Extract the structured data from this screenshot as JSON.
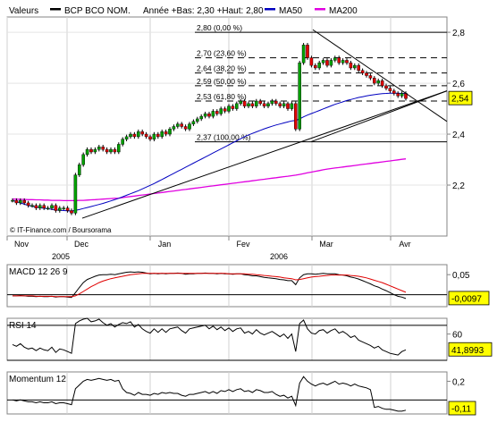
{
  "header": {
    "valeurs_label": "Valeurs",
    "instrument": "BCP BCO NOM.",
    "stats": "Année +Bas: 2,30 +Haut: 2,80",
    "ma50_label": "MA50",
    "ma200_label": "MA200"
  },
  "colors": {
    "background": "#ffffff",
    "frame": "#848484",
    "bull_candle": "#00a000",
    "bear_candle": "#e00000",
    "ma50": "#0000c0",
    "ma200": "#e000e0",
    "macd_line": "#000000",
    "macd_signal": "#e00000",
    "badge": "#ffff00"
  },
  "copyright": "© IT-Finance.com / Boursorama",
  "chart_data": [
    {
      "type": "candlestick",
      "months": [
        "Nov",
        "Dec",
        "Jan",
        "Fev",
        "Mar",
        "Avr"
      ],
      "years": [
        "2005",
        "2006"
      ],
      "y_ticks": [
        "2,8",
        "2,6",
        "2,4",
        "2,2"
      ],
      "ylim": [
        2.0,
        2.86
      ],
      "last_value": "2,54",
      "fibonacci": [
        {
          "level": 2.8,
          "label": "2,80 (0,00 %)"
        },
        {
          "level": 2.7,
          "label": "2,70 (23,60 %)"
        },
        {
          "level": 2.64,
          "label": "2,64 (38,20 %)"
        },
        {
          "level": 2.59,
          "label": "2,59 (50,00 %)"
        },
        {
          "level": 2.53,
          "label": "2,53 (61,80 %)"
        },
        {
          "level": 2.37,
          "label": "2,37 (100,00 %)"
        }
      ],
      "closes": [
        2.14,
        2.13,
        2.14,
        2.13,
        2.12,
        2.12,
        2.11,
        2.12,
        2.11,
        2.11,
        2.12,
        2.1,
        2.11,
        2.11,
        2.1,
        2.09,
        2.24,
        2.28,
        2.32,
        2.34,
        2.33,
        2.34,
        2.35,
        2.34,
        2.33,
        2.34,
        2.33,
        2.36,
        2.38,
        2.39,
        2.4,
        2.39,
        2.41,
        2.4,
        2.39,
        2.38,
        2.4,
        2.39,
        2.41,
        2.4,
        2.42,
        2.43,
        2.44,
        2.43,
        2.42,
        2.44,
        2.45,
        2.46,
        2.47,
        2.48,
        2.47,
        2.49,
        2.48,
        2.5,
        2.49,
        2.51,
        2.5,
        2.52,
        2.53,
        2.51,
        2.52,
        2.51,
        2.53,
        2.52,
        2.51,
        2.52,
        2.53,
        2.52,
        2.51,
        2.52,
        2.5,
        2.52,
        2.42,
        2.68,
        2.75,
        2.7,
        2.67,
        2.66,
        2.68,
        2.69,
        2.67,
        2.69,
        2.7,
        2.68,
        2.69,
        2.68,
        2.66,
        2.67,
        2.65,
        2.64,
        2.63,
        2.62,
        2.6,
        2.61,
        2.59,
        2.58,
        2.57,
        2.56,
        2.55,
        2.56,
        2.54
      ],
      "ma50": [
        2.14,
        2.135,
        2.13,
        2.125,
        2.12,
        2.117,
        2.114,
        2.111,
        2.109,
        2.107,
        2.105,
        2.103,
        2.101,
        2.1,
        2.099,
        2.098,
        2.101,
        2.104,
        2.108,
        2.112,
        2.116,
        2.12,
        2.124,
        2.128,
        2.133,
        2.138,
        2.143,
        2.148,
        2.154,
        2.16,
        2.166,
        2.172,
        2.178,
        2.185,
        2.192,
        2.199,
        2.206,
        2.214,
        2.222,
        2.23,
        2.238,
        2.246,
        2.254,
        2.262,
        2.27,
        2.278,
        2.286,
        2.294,
        2.302,
        2.31,
        2.318,
        2.326,
        2.334,
        2.342,
        2.35,
        2.358,
        2.366,
        2.374,
        2.382,
        2.39,
        2.397,
        2.403,
        2.409,
        2.415,
        2.421,
        2.426,
        2.431,
        2.436,
        2.44,
        2.444,
        2.448,
        2.452,
        2.454,
        2.46,
        2.468,
        2.475,
        2.481,
        2.487,
        2.493,
        2.499,
        2.505,
        2.511,
        2.517,
        2.522,
        2.527,
        2.532,
        2.536,
        2.54,
        2.544,
        2.547,
        2.55,
        2.553,
        2.555,
        2.557,
        2.559,
        2.56,
        2.561,
        2.561,
        2.561,
        2.56,
        2.56
      ],
      "ma200": [
        2.145,
        2.145,
        2.144,
        2.144,
        2.143,
        2.143,
        2.142,
        2.142,
        2.141,
        2.141,
        2.14,
        2.14,
        2.14,
        2.139,
        2.139,
        2.139,
        2.139,
        2.14,
        2.14,
        2.141,
        2.142,
        2.143,
        2.144,
        2.145,
        2.146,
        2.147,
        2.148,
        2.149,
        2.151,
        2.153,
        2.155,
        2.157,
        2.159,
        2.161,
        2.163,
        2.165,
        2.167,
        2.169,
        2.171,
        2.173,
        2.175,
        2.177,
        2.179,
        2.181,
        2.183,
        2.185,
        2.187,
        2.189,
        2.191,
        2.193,
        2.195,
        2.197,
        2.199,
        2.201,
        2.203,
        2.205,
        2.207,
        2.209,
        2.211,
        2.213,
        2.215,
        2.217,
        2.219,
        2.221,
        2.223,
        2.225,
        2.227,
        2.229,
        2.231,
        2.233,
        2.235,
        2.237,
        2.239,
        2.242,
        2.245,
        2.248,
        2.251,
        2.254,
        2.257,
        2.26,
        2.263,
        2.265,
        2.267,
        2.269,
        2.271,
        2.273,
        2.275,
        2.277,
        2.279,
        2.281,
        2.283,
        2.285,
        2.287,
        2.289,
        2.291,
        2.293,
        2.295,
        2.297,
        2.299,
        2.301,
        2.303
      ]
    },
    {
      "type": "line",
      "label": "MACD 12 26 9",
      "y_ticks": [
        "0,05"
      ],
      "ylim": [
        -0.03,
        0.075
      ],
      "zero_line": 0,
      "last_value": "-0,0097",
      "macd": [
        -0.003,
        -0.003,
        -0.002,
        -0.003,
        -0.004,
        -0.004,
        -0.005,
        -0.004,
        -0.005,
        -0.005,
        -0.004,
        -0.006,
        -0.005,
        -0.005,
        -0.006,
        -0.007,
        0.005,
        0.018,
        0.03,
        0.038,
        0.042,
        0.046,
        0.049,
        0.05,
        0.05,
        0.051,
        0.05,
        0.052,
        0.054,
        0.056,
        0.057,
        0.056,
        0.057,
        0.056,
        0.054,
        0.052,
        0.053,
        0.052,
        0.053,
        0.052,
        0.053,
        0.053,
        0.054,
        0.053,
        0.051,
        0.052,
        0.052,
        0.053,
        0.053,
        0.054,
        0.053,
        0.053,
        0.052,
        0.053,
        0.052,
        0.052,
        0.051,
        0.052,
        0.052,
        0.05,
        0.049,
        0.047,
        0.047,
        0.045,
        0.043,
        0.042,
        0.041,
        0.04,
        0.038,
        0.037,
        0.035,
        0.035,
        0.025,
        0.042,
        0.05,
        0.052,
        0.052,
        0.051,
        0.052,
        0.053,
        0.052,
        0.052,
        0.052,
        0.05,
        0.049,
        0.047,
        0.044,
        0.042,
        0.039,
        0.035,
        0.031,
        0.027,
        0.022,
        0.019,
        0.014,
        0.01,
        0.005,
        0.0,
        -0.004,
        -0.006,
        -0.0097
      ],
      "signal": [
        -0.003,
        -0.003,
        -0.003,
        -0.003,
        -0.003,
        -0.003,
        -0.004,
        -0.004,
        -0.004,
        -0.004,
        -0.004,
        -0.005,
        -0.005,
        -0.005,
        -0.005,
        -0.005,
        -0.003,
        0.002,
        0.008,
        0.014,
        0.02,
        0.025,
        0.03,
        0.034,
        0.037,
        0.04,
        0.042,
        0.044,
        0.046,
        0.048,
        0.05,
        0.051,
        0.052,
        0.053,
        0.053,
        0.053,
        0.053,
        0.053,
        0.053,
        0.053,
        0.053,
        0.053,
        0.053,
        0.053,
        0.053,
        0.053,
        0.053,
        0.053,
        0.053,
        0.053,
        0.053,
        0.053,
        0.053,
        0.053,
        0.053,
        0.052,
        0.052,
        0.052,
        0.052,
        0.052,
        0.051,
        0.051,
        0.05,
        0.049,
        0.048,
        0.047,
        0.046,
        0.045,
        0.044,
        0.042,
        0.041,
        0.04,
        0.037,
        0.038,
        0.04,
        0.042,
        0.044,
        0.045,
        0.046,
        0.047,
        0.048,
        0.049,
        0.049,
        0.049,
        0.049,
        0.049,
        0.048,
        0.047,
        0.046,
        0.044,
        0.042,
        0.039,
        0.036,
        0.033,
        0.03,
        0.026,
        0.022,
        0.018,
        0.014,
        0.01,
        0.006
      ]
    },
    {
      "type": "line",
      "label": "RSI 14",
      "y_ticks": [
        "60"
      ],
      "ylim": [
        30,
        78
      ],
      "ref_lines": [
        70,
        30
      ],
      "last_value": "41,8993",
      "values": [
        48,
        46,
        49,
        45,
        43,
        44,
        41,
        44,
        42,
        41,
        45,
        39,
        43,
        42,
        40,
        38,
        72,
        75,
        77,
        78,
        74,
        75,
        77,
        73,
        70,
        72,
        68,
        71,
        73,
        72,
        74,
        68,
        71,
        66,
        63,
        61,
        66,
        62,
        66,
        62,
        66,
        67,
        68,
        64,
        61,
        66,
        67,
        68,
        69,
        70,
        66,
        69,
        65,
        68,
        64,
        67,
        63,
        66,
        67,
        61,
        63,
        60,
        65,
        61,
        59,
        61,
        63,
        60,
        57,
        60,
        55,
        60,
        40,
        72,
        76,
        66,
        61,
        60,
        64,
        65,
        61,
        64,
        66,
        61,
        63,
        60,
        56,
        58,
        53,
        51,
        49,
        47,
        44,
        46,
        42,
        40,
        38,
        37,
        36,
        40,
        42
      ]
    },
    {
      "type": "line",
      "label": "Momentum 12",
      "y_ticks": [
        "0,2"
      ],
      "ylim": [
        -0.15,
        0.3
      ],
      "zero_line": 0,
      "last_value": "-0,11",
      "values": [
        0.0,
        -0.01,
        0.0,
        -0.01,
        -0.02,
        -0.02,
        -0.03,
        -0.02,
        -0.03,
        -0.03,
        -0.02,
        -0.04,
        -0.03,
        -0.03,
        -0.04,
        -0.05,
        0.12,
        0.16,
        0.2,
        0.22,
        0.21,
        0.22,
        0.23,
        0.22,
        0.21,
        0.22,
        0.2,
        0.21,
        0.12,
        0.08,
        0.07,
        0.05,
        0.08,
        0.06,
        0.06,
        0.05,
        0.07,
        0.06,
        0.08,
        0.07,
        0.08,
        0.07,
        0.07,
        0.05,
        0.04,
        0.06,
        0.06,
        0.07,
        0.08,
        0.09,
        0.07,
        0.09,
        0.07,
        0.1,
        0.09,
        0.11,
        0.09,
        0.11,
        0.12,
        0.09,
        0.1,
        0.08,
        0.11,
        0.1,
        0.08,
        0.08,
        0.09,
        0.06,
        0.04,
        0.05,
        0.02,
        0.04,
        -0.06,
        0.18,
        0.25,
        0.2,
        0.17,
        0.15,
        0.17,
        0.18,
        0.16,
        0.18,
        0.2,
        0.17,
        0.18,
        0.17,
        0.15,
        0.17,
        0.15,
        0.14,
        0.13,
        0.11,
        -0.08,
        -0.07,
        -0.09,
        -0.1,
        -0.1,
        -0.11,
        -0.12,
        -0.12,
        -0.11
      ]
    }
  ]
}
